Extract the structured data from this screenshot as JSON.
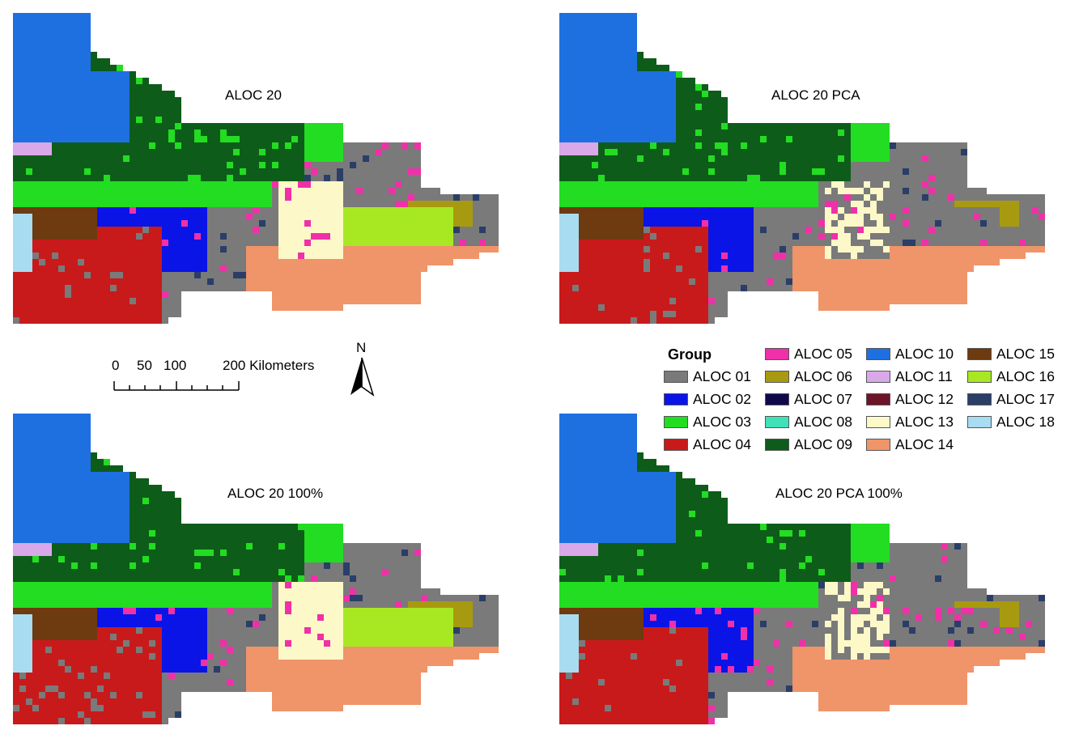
{
  "maps": [
    {
      "id": "aloc20",
      "title": "ALOC 20"
    },
    {
      "id": "aloc20pca",
      "title": "ALOC 20 PCA"
    },
    {
      "id": "aloc20_100",
      "title": "ALOC 20 100%"
    },
    {
      "id": "aloc20pca_100",
      "title": "ALOC 20 PCA 100%"
    }
  ],
  "scalebar": {
    "labels": [
      "0",
      "50",
      "100",
      "200 Kilometers"
    ],
    "unit": "Kilometers"
  },
  "north_arrow": {
    "label": "N"
  },
  "legend": {
    "title": "Group",
    "items": [
      {
        "label": "ALOC 01",
        "color": "#7a7a7a"
      },
      {
        "label": "ALOC 02",
        "color": "#0a14e6"
      },
      {
        "label": "ALOC 03",
        "color": "#22dd22"
      },
      {
        "label": "ALOC 04",
        "color": "#c81a1a"
      },
      {
        "label": "ALOC 05",
        "color": "#f030a8"
      },
      {
        "label": "ALOC 06",
        "color": "#a89a10"
      },
      {
        "label": "ALOC 07",
        "color": "#0e0a4a"
      },
      {
        "label": "ALOC 08",
        "color": "#40e0b8"
      },
      {
        "label": "ALOC 09",
        "color": "#0e5c1a"
      },
      {
        "label": "ALOC 10",
        "color": "#1e70e0"
      },
      {
        "label": "ALOC 11",
        "color": "#d8a8e8"
      },
      {
        "label": "ALOC 12",
        "color": "#6e1428"
      },
      {
        "label": "ALOC 13",
        "color": "#fcf8c8"
      },
      {
        "label": "ALOC 14",
        "color": "#f0946a"
      },
      {
        "label": "ALOC 15",
        "color": "#6e3a10"
      },
      {
        "label": "ALOC 16",
        "color": "#a8e822"
      },
      {
        "label": "ALOC 17",
        "color": "#2a3e68"
      },
      {
        "label": "ALOC 18",
        "color": "#a8dcf0"
      }
    ]
  }
}
